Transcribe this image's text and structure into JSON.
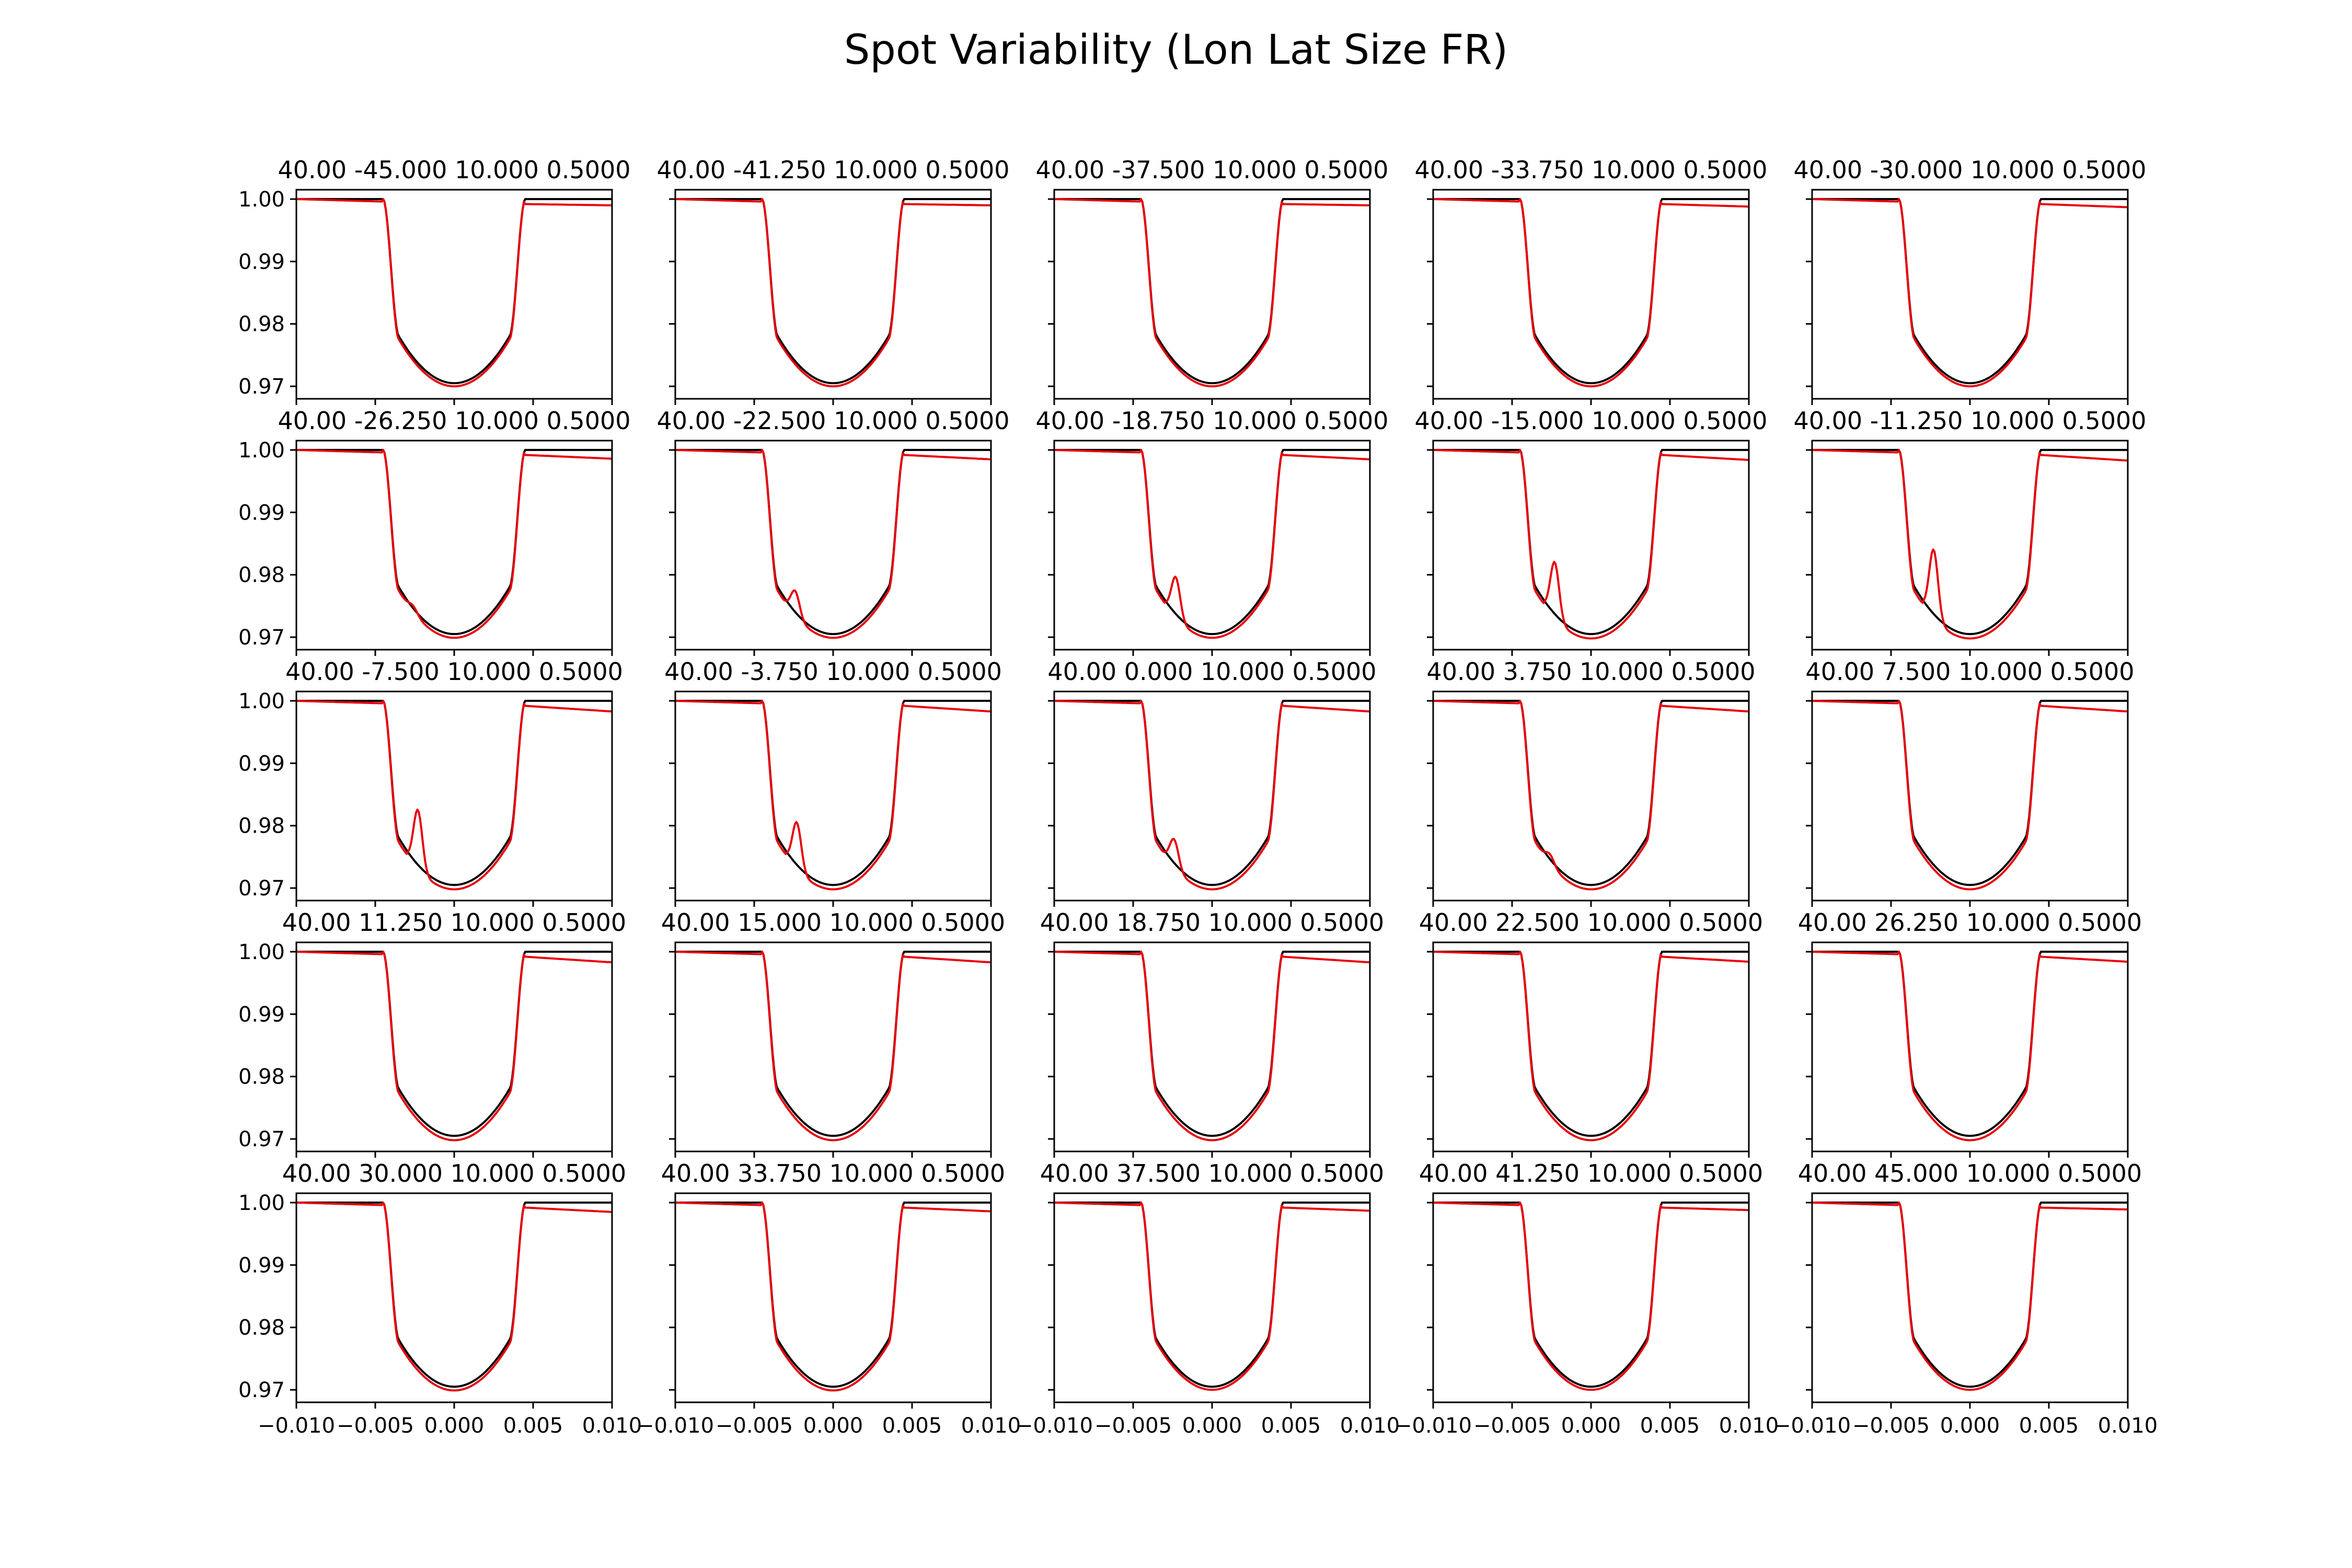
{
  "chart_data": {
    "type": "line",
    "title": "Spot Variability (Lon Lat Size FR)",
    "xlabel": "",
    "ylabel": "",
    "grid": false,
    "layout": {
      "rows": 5,
      "cols": 5
    },
    "xlim": [
      -0.01,
      0.01
    ],
    "ylim": [
      0.968,
      1.0015
    ],
    "x_ticks": [
      -0.01,
      -0.005,
      0.0,
      0.005,
      0.01
    ],
    "x_tick_labels": [
      "−0.010",
      "−0.005",
      "0.000",
      "0.005",
      "0.010"
    ],
    "y_ticks": [
      1.0,
      0.99,
      0.98,
      0.97
    ],
    "y_tick_labels": [
      "1.00",
      "0.99",
      "0.98",
      "0.97"
    ],
    "transit_model": {
      "ingress_start": -0.0045,
      "full_start": -0.0035,
      "full_end": 0.0035,
      "egress_end": 0.0045,
      "depth_center": 0.9705,
      "depth_at_contact": 0.978
    },
    "series_styles": [
      {
        "key": "unspotted",
        "color": "#000000"
      },
      {
        "key": "spotted",
        "color": "#e8000b"
      }
    ],
    "panels": [
      {
        "title": "40.00 -45.000 10.000 0.5000",
        "lon": 40.0,
        "lat": -45.0,
        "size": 10.0,
        "fr": 0.5,
        "bump_x": 0.0,
        "bump_height": 0.0,
        "red_offset": 0.0005,
        "red_end": 0.999
      },
      {
        "title": "40.00 -41.250 10.000 0.5000",
        "lon": 40.0,
        "lat": -41.25,
        "size": 10.0,
        "fr": 0.5,
        "bump_x": 0.0,
        "bump_height": 0.0,
        "red_offset": 0.0005,
        "red_end": 0.999
      },
      {
        "title": "40.00 -37.500 10.000 0.5000",
        "lon": 40.0,
        "lat": -37.5,
        "size": 10.0,
        "fr": 0.5,
        "bump_x": 0.0,
        "bump_height": 0.0,
        "red_offset": 0.0005,
        "red_end": 0.999
      },
      {
        "title": "40.00 -33.750 10.000 0.5000",
        "lon": 40.0,
        "lat": -33.75,
        "size": 10.0,
        "fr": 0.5,
        "bump_x": 0.0,
        "bump_height": 0.0,
        "red_offset": 0.0005,
        "red_end": 0.9988
      },
      {
        "title": "40.00 -30.000 10.000 0.5000",
        "lon": 40.0,
        "lat": -30.0,
        "size": 10.0,
        "fr": 0.5,
        "bump_x": 0.0,
        "bump_height": 0.0,
        "red_offset": 0.0005,
        "red_end": 0.9987
      },
      {
        "title": "40.00 -26.250 10.000 0.5000",
        "lon": 40.0,
        "lat": -26.25,
        "size": 10.0,
        "fr": 0.5,
        "bump_x": -0.0029,
        "bump_height": 0.001,
        "red_offset": 0.0006,
        "red_end": 0.9986
      },
      {
        "title": "40.00 -22.500 10.000 0.5000",
        "lon": 40.0,
        "lat": -22.5,
        "size": 10.0,
        "fr": 0.5,
        "bump_x": -0.0027,
        "bump_height": 0.004,
        "red_offset": 0.0006,
        "red_end": 0.9985
      },
      {
        "title": "40.00 -18.750 10.000 0.5000",
        "lon": 40.0,
        "lat": -18.75,
        "size": 10.0,
        "fr": 0.5,
        "bump_x": -0.0026,
        "bump_height": 0.0065,
        "red_offset": 0.0006,
        "red_end": 0.9985
      },
      {
        "title": "40.00 -15.000 10.000 0.5000",
        "lon": 40.0,
        "lat": -15.0,
        "size": 10.0,
        "fr": 0.5,
        "bump_x": -0.0026,
        "bump_height": 0.009,
        "red_offset": 0.0007,
        "red_end": 0.9984
      },
      {
        "title": "40.00 -11.250 10.000 0.5000",
        "lon": 40.0,
        "lat": -11.25,
        "size": 10.0,
        "fr": 0.5,
        "bump_x": -0.0026,
        "bump_height": 0.011,
        "red_offset": 0.0007,
        "red_end": 0.9983
      },
      {
        "title": "40.00 -7.500 10.000 0.5000",
        "lon": 40.0,
        "lat": -7.5,
        "size": 10.0,
        "fr": 0.5,
        "bump_x": -0.0026,
        "bump_height": 0.0095,
        "red_offset": 0.0007,
        "red_end": 0.9983
      },
      {
        "title": "40.00 -3.750 10.000 0.5000",
        "lon": 40.0,
        "lat": -3.75,
        "size": 10.0,
        "fr": 0.5,
        "bump_x": -0.0026,
        "bump_height": 0.0075,
        "red_offset": 0.0007,
        "red_end": 0.9983
      },
      {
        "title": "40.00 0.000 10.000 0.5000",
        "lon": 40.0,
        "lat": 0.0,
        "size": 10.0,
        "fr": 0.5,
        "bump_x": -0.0027,
        "bump_height": 0.0045,
        "red_offset": 0.0007,
        "red_end": 0.9983
      },
      {
        "title": "40.00 3.750 10.000 0.5000",
        "lon": 40.0,
        "lat": 3.75,
        "size": 10.0,
        "fr": 0.5,
        "bump_x": -0.0029,
        "bump_height": 0.0015,
        "red_offset": 0.0007,
        "red_end": 0.9983
      },
      {
        "title": "40.00 7.500 10.000 0.5000",
        "lon": 40.0,
        "lat": 7.5,
        "size": 10.0,
        "fr": 0.5,
        "bump_x": 0.0,
        "bump_height": 0.0,
        "red_offset": 0.0007,
        "red_end": 0.9983
      },
      {
        "title": "40.00 11.250 10.000 0.5000",
        "lon": 40.0,
        "lat": 11.25,
        "size": 10.0,
        "fr": 0.5,
        "bump_x": 0.0,
        "bump_height": 0.0,
        "red_offset": 0.0007,
        "red_end": 0.9983
      },
      {
        "title": "40.00 15.000 10.000 0.5000",
        "lon": 40.0,
        "lat": 15.0,
        "size": 10.0,
        "fr": 0.5,
        "bump_x": 0.0,
        "bump_height": 0.0,
        "red_offset": 0.0007,
        "red_end": 0.9983
      },
      {
        "title": "40.00 18.750 10.000 0.5000",
        "lon": 40.0,
        "lat": 18.75,
        "size": 10.0,
        "fr": 0.5,
        "bump_x": 0.0,
        "bump_height": 0.0,
        "red_offset": 0.0007,
        "red_end": 0.9983
      },
      {
        "title": "40.00 22.500 10.000 0.5000",
        "lon": 40.0,
        "lat": 22.5,
        "size": 10.0,
        "fr": 0.5,
        "bump_x": 0.0,
        "bump_height": 0.0,
        "red_offset": 0.0007,
        "red_end": 0.9984
      },
      {
        "title": "40.00 26.250 10.000 0.5000",
        "lon": 40.0,
        "lat": 26.25,
        "size": 10.0,
        "fr": 0.5,
        "bump_x": 0.0,
        "bump_height": 0.0,
        "red_offset": 0.0007,
        "red_end": 0.9984
      },
      {
        "title": "40.00 30.000 10.000 0.5000",
        "lon": 40.0,
        "lat": 30.0,
        "size": 10.0,
        "fr": 0.5,
        "bump_x": 0.0,
        "bump_height": 0.0,
        "red_offset": 0.0006,
        "red_end": 0.9985
      },
      {
        "title": "40.00 33.750 10.000 0.5000",
        "lon": 40.0,
        "lat": 33.75,
        "size": 10.0,
        "fr": 0.5,
        "bump_x": 0.0,
        "bump_height": 0.0,
        "red_offset": 0.0006,
        "red_end": 0.9986
      },
      {
        "title": "40.00 37.500 10.000 0.5000",
        "lon": 40.0,
        "lat": 37.5,
        "size": 10.0,
        "fr": 0.5,
        "bump_x": 0.0,
        "bump_height": 0.0,
        "red_offset": 0.0005,
        "red_end": 0.9987
      },
      {
        "title": "40.00 41.250 10.000 0.5000",
        "lon": 40.0,
        "lat": 41.25,
        "size": 10.0,
        "fr": 0.5,
        "bump_x": 0.0,
        "bump_height": 0.0,
        "red_offset": 0.0005,
        "red_end": 0.9988
      },
      {
        "title": "40.00 45.000 10.000 0.5000",
        "lon": 40.0,
        "lat": 45.0,
        "size": 10.0,
        "fr": 0.5,
        "bump_x": 0.0,
        "bump_height": 0.0,
        "red_offset": 0.0005,
        "red_end": 0.9989
      }
    ]
  }
}
